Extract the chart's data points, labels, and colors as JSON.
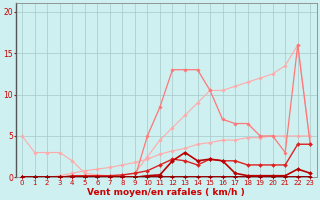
{
  "title": "",
  "xlabel": "Vent moyen/en rafales ( km/h )",
  "ylabel": "",
  "xlim": [
    -0.5,
    23.5
  ],
  "ylim": [
    0,
    21
  ],
  "bg_color": "#cff0f0",
  "grid_color": "#a8c8c8",
  "series": [
    {
      "color": "#ffaaaa",
      "linewidth": 0.8,
      "marker": "D",
      "markersize": 1.8,
      "x": [
        0,
        1,
        2,
        3,
        4,
        5,
        6,
        7,
        8,
        9,
        10,
        11,
        12,
        13,
        14,
        15,
        16,
        17,
        18,
        19,
        20,
        21,
        22,
        23
      ],
      "y": [
        5.0,
        3.0,
        3.0,
        3.0,
        2.0,
        0.5,
        0.3,
        0.2,
        0.2,
        0.5,
        2.5,
        4.5,
        6.0,
        7.5,
        9.0,
        10.5,
        10.5,
        11.0,
        11.5,
        12.0,
        12.5,
        13.5,
        16.0,
        4.0
      ]
    },
    {
      "color": "#ffaaaa",
      "linewidth": 0.8,
      "marker": "D",
      "markersize": 1.8,
      "x": [
        0,
        1,
        2,
        3,
        4,
        5,
        6,
        7,
        8,
        9,
        10,
        11,
        12,
        13,
        14,
        15,
        16,
        17,
        18,
        19,
        20,
        21,
        22,
        23
      ],
      "y": [
        0.0,
        0.0,
        0.0,
        0.2,
        0.5,
        0.8,
        1.0,
        1.2,
        1.5,
        1.8,
        2.2,
        2.8,
        3.2,
        3.5,
        4.0,
        4.2,
        4.5,
        4.5,
        4.8,
        4.8,
        5.0,
        5.0,
        5.0,
        5.0
      ]
    },
    {
      "color": "#ff7777",
      "linewidth": 0.9,
      "marker": "D",
      "markersize": 1.8,
      "x": [
        0,
        1,
        2,
        3,
        4,
        5,
        6,
        7,
        8,
        9,
        10,
        11,
        12,
        13,
        14,
        15,
        16,
        17,
        18,
        19,
        20,
        21,
        22,
        23
      ],
      "y": [
        0.0,
        0.0,
        0.0,
        0.0,
        0.0,
        0.0,
        0.0,
        0.0,
        0.0,
        0.0,
        5.0,
        8.5,
        13.0,
        13.0,
        13.0,
        10.5,
        7.0,
        6.5,
        6.5,
        5.0,
        5.0,
        3.0,
        16.0,
        4.0
      ]
    },
    {
      "color": "#dd2222",
      "linewidth": 1.0,
      "marker": "D",
      "markersize": 2.0,
      "x": [
        0,
        1,
        2,
        3,
        4,
        5,
        6,
        7,
        8,
        9,
        10,
        11,
        12,
        13,
        14,
        15,
        16,
        17,
        18,
        19,
        20,
        21,
        22,
        23
      ],
      "y": [
        0.0,
        0.0,
        0.0,
        0.0,
        0.2,
        0.2,
        0.2,
        0.2,
        0.3,
        0.5,
        0.8,
        1.5,
        2.2,
        2.0,
        1.5,
        2.2,
        2.0,
        2.0,
        1.5,
        1.5,
        1.5,
        1.5,
        4.0,
        4.0
      ]
    },
    {
      "color": "#bb0000",
      "linewidth": 1.2,
      "marker": "D",
      "markersize": 2.0,
      "x": [
        0,
        1,
        2,
        3,
        4,
        5,
        6,
        7,
        8,
        9,
        10,
        11,
        12,
        13,
        14,
        15,
        16,
        17,
        18,
        19,
        20,
        21,
        22,
        23
      ],
      "y": [
        0.0,
        0.0,
        0.0,
        0.0,
        0.0,
        0.0,
        0.0,
        0.0,
        0.0,
        0.0,
        0.2,
        0.3,
        2.0,
        3.0,
        2.0,
        2.2,
        2.0,
        0.5,
        0.2,
        0.2,
        0.2,
        0.2,
        1.0,
        0.5
      ]
    },
    {
      "color": "#990000",
      "linewidth": 1.4,
      "marker": "D",
      "markersize": 2.0,
      "x": [
        0,
        1,
        2,
        3,
        4,
        5,
        6,
        7,
        8,
        9,
        10,
        11,
        12,
        13,
        14,
        15,
        16,
        17,
        18,
        19,
        20,
        21,
        22,
        23
      ],
      "y": [
        0.0,
        0.0,
        0.0,
        0.0,
        0.0,
        0.0,
        0.0,
        0.0,
        0.0,
        0.0,
        0.0,
        0.0,
        0.0,
        0.0,
        0.0,
        0.0,
        0.0,
        0.0,
        0.0,
        0.0,
        0.0,
        0.0,
        0.0,
        0.0
      ]
    }
  ],
  "xtick_fontsize": 5.0,
  "ytick_fontsize": 5.5,
  "xlabel_fontsize": 6.5,
  "tick_color": "#cc0000",
  "label_color": "#cc0000",
  "spine_color": "#888888",
  "left_spine_color": "#555555"
}
